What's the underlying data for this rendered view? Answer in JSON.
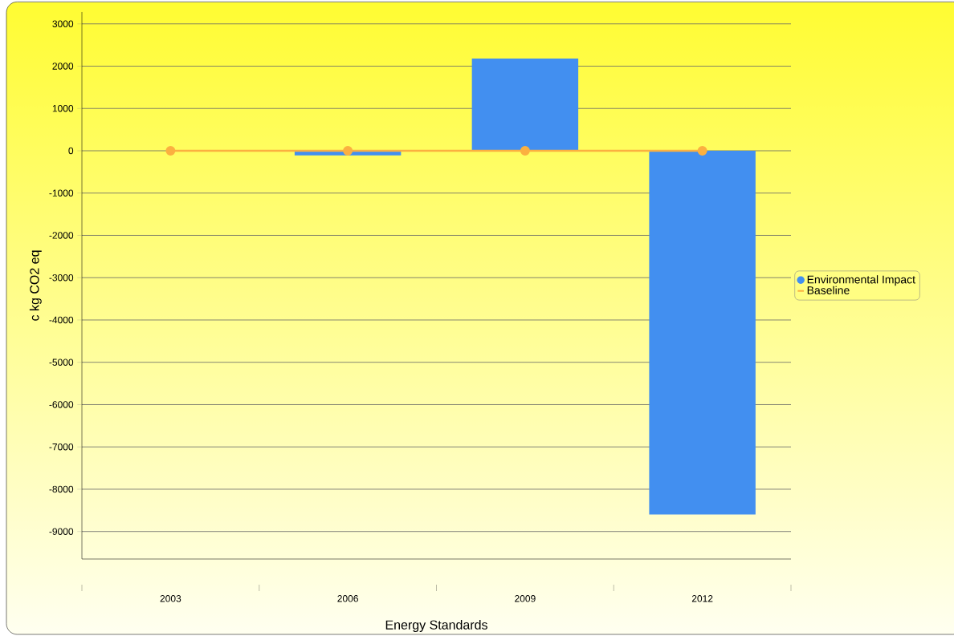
{
  "chart_data": {
    "type": "bar",
    "xlabel": "Energy Standards",
    "ylabel": "c kg CO2 eq",
    "categories": [
      "2003",
      "2006",
      "2009",
      "2012"
    ],
    "series": [
      {
        "name": "Environmental Impact",
        "color": "#428ff0",
        "values": [
          0,
          -110,
          2180,
          -8600
        ]
      },
      {
        "name": "Baseline",
        "type": "line",
        "color": "#fbb040",
        "marker": "circle",
        "values": [
          0,
          0,
          0,
          0
        ]
      }
    ],
    "ylim": [
      -9650,
      3280
    ],
    "yticks": [
      -9000,
      -8000,
      -7000,
      -6000,
      -5000,
      -4000,
      -3000,
      -2000,
      -1000,
      0,
      1000,
      2000,
      3000
    ],
    "grid": "y",
    "legend": "right"
  }
}
